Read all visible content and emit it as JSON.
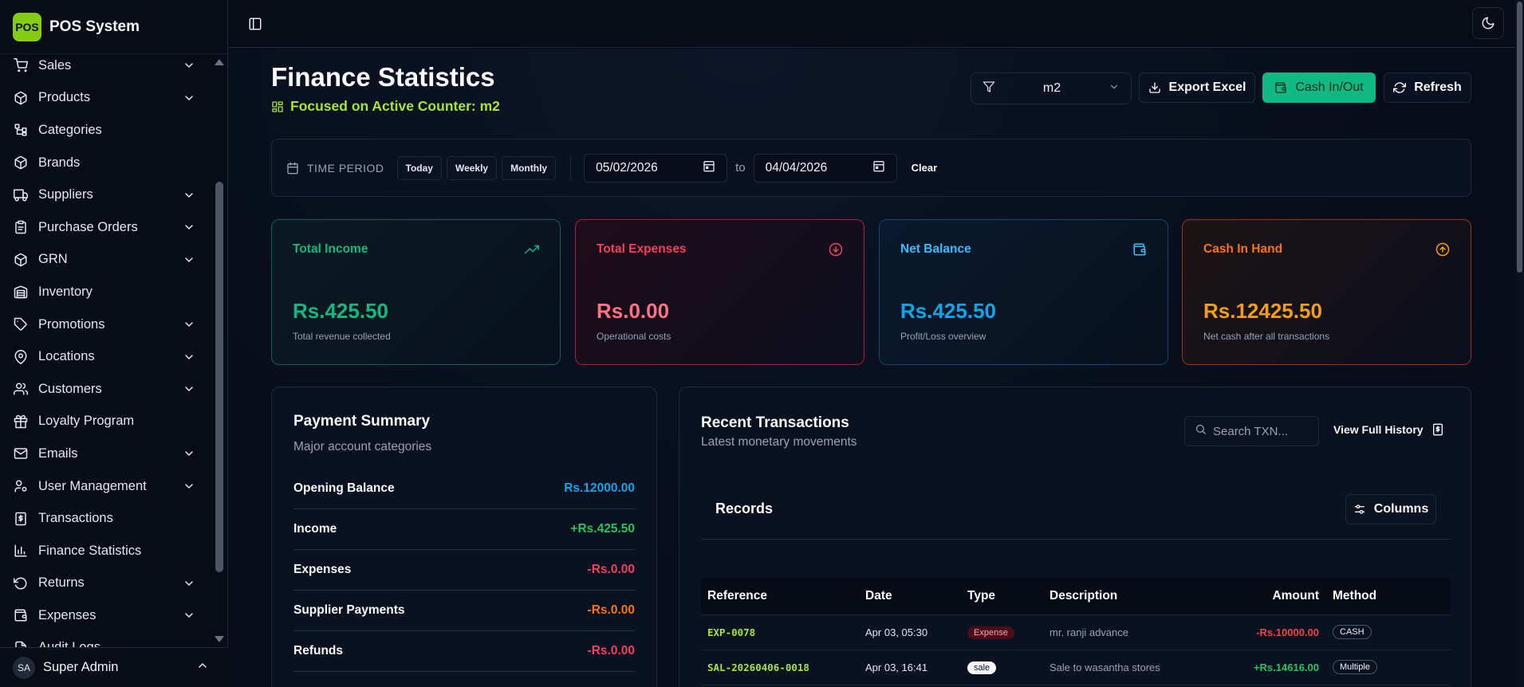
{
  "app": {
    "logo_text": "POS",
    "name": "POS System"
  },
  "sidebar": {
    "items": [
      {
        "label": "Sales",
        "icon": "cart-icon",
        "has_children": true
      },
      {
        "label": "Products",
        "icon": "package-icon",
        "has_children": true
      },
      {
        "label": "Categories",
        "icon": "hierarchy-icon",
        "has_children": false
      },
      {
        "label": "Brands",
        "icon": "box-icon",
        "has_children": false
      },
      {
        "label": "Suppliers",
        "icon": "truck-icon",
        "has_children": true
      },
      {
        "label": "Purchase Orders",
        "icon": "clipboard-icon",
        "has_children": true
      },
      {
        "label": "GRN",
        "icon": "package-check-icon",
        "has_children": true
      },
      {
        "label": "Inventory",
        "icon": "warehouse-icon",
        "has_children": false
      },
      {
        "label": "Promotions",
        "icon": "tag-icon",
        "has_children": true
      },
      {
        "label": "Locations",
        "icon": "map-pin-icon",
        "has_children": true
      },
      {
        "label": "Customers",
        "icon": "users-icon",
        "has_children": true
      },
      {
        "label": "Loyalty Program",
        "icon": "gift-icon",
        "has_children": false
      },
      {
        "label": "Emails",
        "icon": "mail-icon",
        "has_children": true
      },
      {
        "label": "User Management",
        "icon": "user-cog-icon",
        "has_children": true
      },
      {
        "label": "Transactions",
        "icon": "receipt-icon",
        "has_children": false
      },
      {
        "label": "Finance Statistics",
        "icon": "bar-chart-icon",
        "has_children": false
      },
      {
        "label": "Returns",
        "icon": "undo-icon",
        "has_children": true
      },
      {
        "label": "Expenses",
        "icon": "wallet-icon",
        "has_children": true
      },
      {
        "label": "Audit Logs",
        "icon": "file-list-icon",
        "has_children": false
      }
    ],
    "user": {
      "initials": "SA",
      "name": "Super Admin"
    }
  },
  "header": {
    "title": "Finance Statistics",
    "subtitle": "Focused on Active Counter: m2",
    "counter_value": "m2",
    "export_label": "Export Excel",
    "cash_label": "Cash In/Out",
    "refresh_label": "Refresh"
  },
  "filter": {
    "label": "TIME PERIOD",
    "today": "Today",
    "weekly": "Weekly",
    "monthly": "Monthly",
    "from_date": "05/02/2026",
    "to_label": "to",
    "to_date": "04/04/2026",
    "clear": "Clear"
  },
  "cards": {
    "income": {
      "title": "Total Income",
      "value": "Rs.425.50",
      "desc": "Total revenue collected"
    },
    "expenses": {
      "title": "Total Expenses",
      "value": "Rs.0.00",
      "desc": "Operational costs"
    },
    "net": {
      "title": "Net Balance",
      "value": "Rs.425.50",
      "desc": "Profit/Loss overview"
    },
    "cash": {
      "title": "Cash In Hand",
      "value": "Rs.12425.50",
      "desc": "Net cash after all transactions"
    }
  },
  "summary": {
    "title": "Payment Summary",
    "subtitle": "Major account categories",
    "rows": [
      {
        "label": "Opening Balance",
        "value": "Rs.12000.00",
        "color": "#0ea5e9"
      },
      {
        "label": "Income",
        "value": "+Rs.425.50",
        "color": "#22c55e"
      },
      {
        "label": "Expenses",
        "value": "-Rs.0.00",
        "color": "#f43f5e"
      },
      {
        "label": "Supplier Payments",
        "value": "-Rs.0.00",
        "color": "#f97316"
      },
      {
        "label": "Refunds",
        "value": "-Rs.0.00",
        "color": "#f43f5e"
      }
    ]
  },
  "transactions": {
    "title": "Recent Transactions",
    "subtitle": "Latest monetary movements",
    "search_placeholder": "Search TXN...",
    "history_label": "View Full History",
    "records_title": "Records",
    "columns_label": "Columns",
    "headers": {
      "reference": "Reference",
      "date": "Date",
      "type": "Type",
      "description": "Description",
      "amount": "Amount",
      "method": "Method"
    },
    "rows": [
      {
        "reference": "EXP-0078",
        "date": "Apr 03, 05:30",
        "type": "Expense",
        "description": "mr. ranji advance",
        "amount": "-Rs.10000.00",
        "method": "CASH"
      },
      {
        "reference": "SAL-20260406-0018",
        "date": "Apr 03, 16:41",
        "type": "sale",
        "description": "Sale to wasantha stores",
        "amount": "+Rs.14616.00",
        "method": "Multiple"
      }
    ]
  }
}
